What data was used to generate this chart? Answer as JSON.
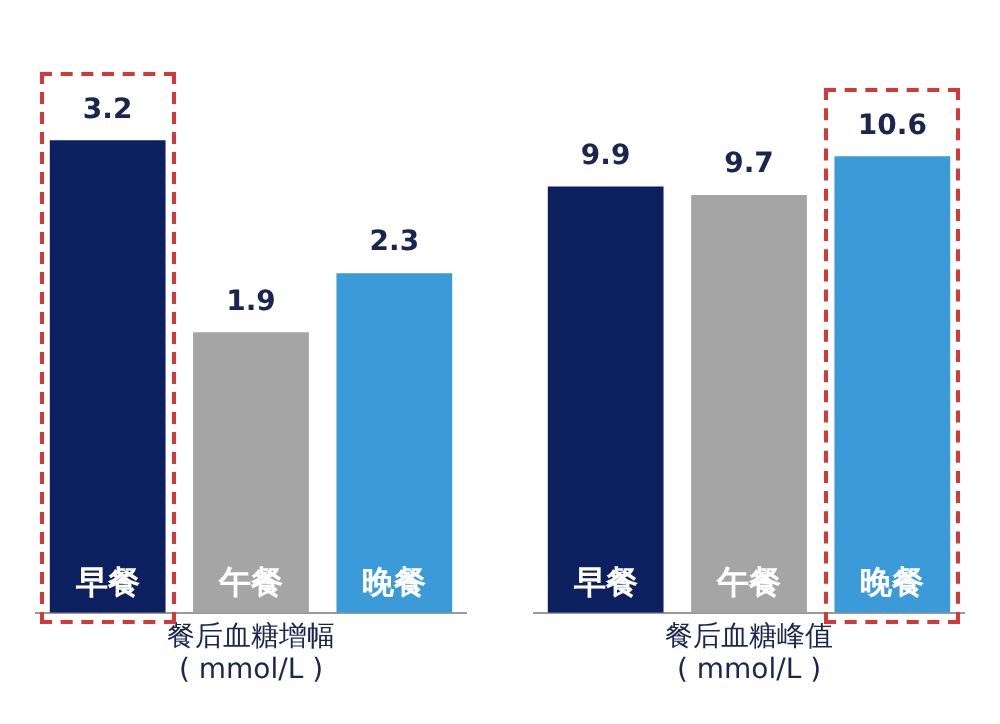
{
  "chart_data": [
    {
      "type": "bar",
      "categories": [
        "早餐",
        "午餐",
        "晚餐"
      ],
      "values": [
        3.2,
        1.9,
        2.3
      ],
      "colors": [
        "#0c1f5e",
        "#a5a5a5",
        "#3b9bd8"
      ],
      "xlabel": "餐后血糖增幅\n( mmol/L )",
      "data_labels": true
    },
    {
      "type": "bar",
      "categories": [
        "早餐",
        "午餐",
        "晚餐"
      ],
      "values": [
        9.9,
        9.7,
        10.6
      ],
      "colors": [
        "#0c1f5e",
        "#a5a5a5",
        "#3b9bd8"
      ],
      "xlabel": "餐后血糖峰值\n( mmol/L )",
      "data_labels": true
    }
  ]
}
